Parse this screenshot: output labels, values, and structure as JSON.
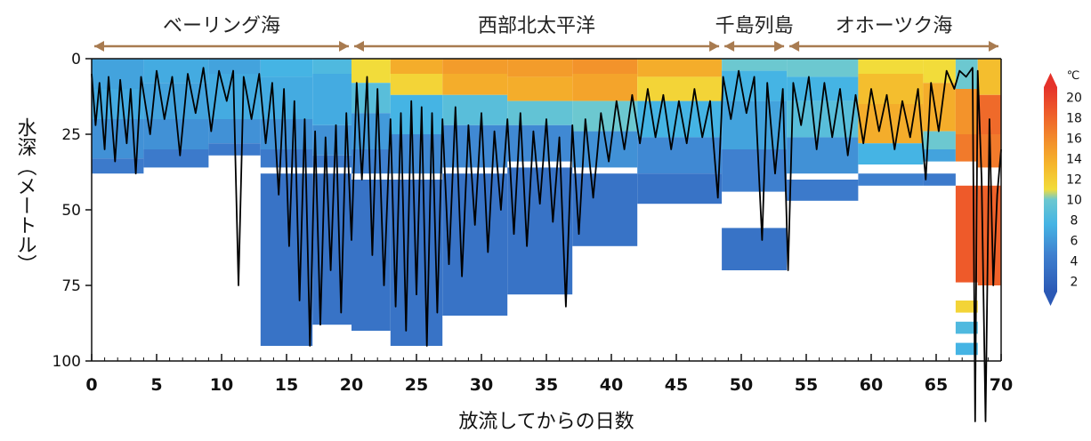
{
  "chart_data": {
    "type": "heatmap",
    "xlabel": "放流してからの日数",
    "ylabel": "水深（メートル）",
    "xlim": [
      0,
      70
    ],
    "ylim": [
      0,
      100
    ],
    "y_inverted": true,
    "x_ticks": [
      "0",
      "5",
      "10",
      "15",
      "20",
      "25",
      "30",
      "35",
      "40",
      "45",
      "50",
      "55",
      "60",
      "65",
      "70"
    ],
    "y_ticks": [
      "0",
      "25",
      "50",
      "75",
      "100"
    ],
    "grid": false,
    "regions": [
      {
        "label": "ベーリング海",
        "x_start": 0,
        "x_end": 20
      },
      {
        "label": "西部北太平洋",
        "x_start": 20,
        "x_end": 48.5
      },
      {
        "label": "千島列島",
        "x_start": 48.5,
        "x_end": 53.5
      },
      {
        "label": "オホーツク海",
        "x_start": 53.5,
        "x_end": 70
      }
    ],
    "colorbar": {
      "unit": "℃",
      "ticks": [
        "2",
        "4",
        "6",
        "8",
        "10",
        "12",
        "14",
        "16",
        "18",
        "20"
      ],
      "tick_values": [
        2,
        4,
        6,
        8,
        10,
        12,
        14,
        16,
        18,
        20
      ],
      "range": [
        1,
        21
      ]
    },
    "temperature_columns": [
      {
        "x0": 0.0,
        "x1": 4.0,
        "layers": [
          [
            0,
            10,
            6
          ],
          [
            10,
            20,
            6.5
          ],
          [
            20,
            33,
            5
          ],
          [
            33,
            38,
            3.5
          ]
        ]
      },
      {
        "x0": 4.0,
        "x1": 9.0,
        "layers": [
          [
            0,
            8,
            6.5
          ],
          [
            8,
            20,
            6
          ],
          [
            20,
            30,
            5
          ],
          [
            30,
            36,
            3.5
          ]
        ]
      },
      {
        "x0": 9.0,
        "x1": 13.0,
        "layers": [
          [
            0,
            5,
            6
          ],
          [
            5,
            20,
            6.5
          ],
          [
            20,
            28,
            5
          ],
          [
            28,
            32,
            3.5
          ]
        ]
      },
      {
        "x0": 13.0,
        "x1": 17.0,
        "layers": [
          [
            0,
            6,
            7
          ],
          [
            6,
            20,
            6.5
          ],
          [
            20,
            30,
            5
          ],
          [
            30,
            36,
            3.5
          ],
          [
            38,
            95,
            3
          ]
        ]
      },
      {
        "x0": 17.0,
        "x1": 20.0,
        "layers": [
          [
            0,
            5,
            7.5
          ],
          [
            5,
            22,
            6.5
          ],
          [
            22,
            32,
            5
          ],
          [
            32,
            36,
            3.5
          ],
          [
            38,
            88,
            3
          ]
        ]
      },
      {
        "x0": 20.0,
        "x1": 23.0,
        "layers": [
          [
            0,
            8,
            10
          ],
          [
            8,
            18,
            8
          ],
          [
            18,
            30,
            5.5
          ],
          [
            30,
            38,
            4
          ],
          [
            40,
            90,
            3
          ]
        ]
      },
      {
        "x0": 23.0,
        "x1": 27.0,
        "layers": [
          [
            0,
            5,
            13
          ],
          [
            5,
            12,
            10.5
          ],
          [
            12,
            25,
            7
          ],
          [
            25,
            38,
            4.5
          ],
          [
            40,
            95,
            3
          ]
        ]
      },
      {
        "x0": 27.0,
        "x1": 32.0,
        "layers": [
          [
            0,
            5,
            14
          ],
          [
            5,
            12,
            13
          ],
          [
            12,
            22,
            8
          ],
          [
            22,
            36,
            4.5
          ],
          [
            38,
            85,
            3
          ]
        ]
      },
      {
        "x0": 32.0,
        "x1": 37.0,
        "layers": [
          [
            0,
            6,
            14
          ],
          [
            6,
            14,
            13
          ],
          [
            14,
            22,
            8.5
          ],
          [
            22,
            34,
            4.5
          ],
          [
            36,
            78,
            3
          ]
        ]
      },
      {
        "x0": 37.0,
        "x1": 42.0,
        "layers": [
          [
            0,
            5,
            14.5
          ],
          [
            5,
            14,
            13.5
          ],
          [
            14,
            24,
            9
          ],
          [
            24,
            36,
            5
          ],
          [
            38,
            62,
            3
          ]
        ]
      },
      {
        "x0": 42.0,
        "x1": 48.5,
        "layers": [
          [
            0,
            6,
            13
          ],
          [
            6,
            14,
            10.5
          ],
          [
            14,
            26,
            7
          ],
          [
            26,
            38,
            4.5
          ],
          [
            38,
            48,
            3
          ]
        ]
      },
      {
        "x0": 48.5,
        "x1": 53.5,
        "layers": [
          [
            0,
            4,
            9
          ],
          [
            4,
            14,
            7
          ],
          [
            14,
            30,
            6
          ],
          [
            30,
            44,
            4
          ],
          [
            56,
            70,
            3
          ]
        ]
      },
      {
        "x0": 53.5,
        "x1": 59.0,
        "layers": [
          [
            0,
            6,
            9
          ],
          [
            6,
            14,
            7
          ],
          [
            14,
            26,
            8
          ],
          [
            26,
            38,
            5
          ],
          [
            40,
            47,
            3.5
          ]
        ]
      },
      {
        "x0": 59.0,
        "x1": 64.0,
        "layers": [
          [
            0,
            5,
            10
          ],
          [
            5,
            15,
            12
          ],
          [
            15,
            28,
            13
          ],
          [
            28,
            35,
            7
          ],
          [
            38,
            42,
            4
          ]
        ]
      },
      {
        "x0": 64.0,
        "x1": 66.5,
        "layers": [
          [
            0,
            8,
            10
          ],
          [
            8,
            24,
            13
          ],
          [
            24,
            30,
            9
          ],
          [
            30,
            34,
            6
          ],
          [
            38,
            42,
            3.5
          ]
        ]
      },
      {
        "x0": 66.5,
        "x1": 68.2,
        "layers": [
          [
            0,
            10,
            9
          ],
          [
            10,
            25,
            14.5
          ],
          [
            25,
            34,
            16
          ],
          [
            42,
            74,
            18
          ],
          [
            80,
            84,
            10.5
          ],
          [
            87,
            91,
            7.5
          ],
          [
            94,
            98,
            7
          ]
        ]
      },
      {
        "x0": 68.2,
        "x1": 70.0,
        "layers": [
          [
            0,
            12,
            12
          ],
          [
            12,
            25,
            17
          ],
          [
            25,
            36,
            16
          ],
          [
            42,
            75,
            17.5
          ]
        ]
      }
    ],
    "depth_trace": [
      [
        0,
        5
      ],
      [
        0.3,
        22
      ],
      [
        0.6,
        8
      ],
      [
        1.0,
        30
      ],
      [
        1.3,
        6
      ],
      [
        1.8,
        34
      ],
      [
        2.2,
        7
      ],
      [
        2.7,
        28
      ],
      [
        3.0,
        10
      ],
      [
        3.4,
        38
      ],
      [
        3.8,
        6
      ],
      [
        4.5,
        25
      ],
      [
        5.0,
        4
      ],
      [
        5.6,
        20
      ],
      [
        6.2,
        6
      ],
      [
        6.8,
        32
      ],
      [
        7.4,
        5
      ],
      [
        8.0,
        18
      ],
      [
        8.6,
        3
      ],
      [
        9.2,
        24
      ],
      [
        9.8,
        4
      ],
      [
        10.4,
        14
      ],
      [
        10.9,
        4
      ],
      [
        11.3,
        75
      ],
      [
        11.7,
        6
      ],
      [
        12.3,
        20
      ],
      [
        12.9,
        5
      ],
      [
        13.4,
        28
      ],
      [
        13.9,
        8
      ],
      [
        14.4,
        45
      ],
      [
        14.8,
        10
      ],
      [
        15.2,
        62
      ],
      [
        15.6,
        14
      ],
      [
        16.0,
        80
      ],
      [
        16.4,
        20
      ],
      [
        16.8,
        95
      ],
      [
        17.2,
        24
      ],
      [
        17.6,
        88
      ],
      [
        18.0,
        26
      ],
      [
        18.4,
        70
      ],
      [
        18.8,
        22
      ],
      [
        19.2,
        84
      ],
      [
        19.6,
        18
      ],
      [
        20.0,
        60
      ],
      [
        20.4,
        8
      ],
      [
        20.8,
        40
      ],
      [
        21.2,
        6
      ],
      [
        21.6,
        65
      ],
      [
        22.0,
        10
      ],
      [
        22.5,
        75
      ],
      [
        23.0,
        20
      ],
      [
        23.4,
        82
      ],
      [
        23.8,
        18
      ],
      [
        24.2,
        90
      ],
      [
        24.6,
        14
      ],
      [
        25.0,
        78
      ],
      [
        25.4,
        16
      ],
      [
        25.8,
        95
      ],
      [
        26.2,
        18
      ],
      [
        26.6,
        84
      ],
      [
        27.0,
        20
      ],
      [
        27.5,
        68
      ],
      [
        28.0,
        16
      ],
      [
        28.5,
        72
      ],
      [
        29.0,
        22
      ],
      [
        29.5,
        55
      ],
      [
        30.0,
        18
      ],
      [
        30.5,
        64
      ],
      [
        31.0,
        24
      ],
      [
        31.5,
        50
      ],
      [
        32.0,
        20
      ],
      [
        32.5,
        58
      ],
      [
        33.0,
        18
      ],
      [
        33.5,
        62
      ],
      [
        34.0,
        24
      ],
      [
        34.5,
        48
      ],
      [
        35.0,
        20
      ],
      [
        35.5,
        54
      ],
      [
        36.0,
        26
      ],
      [
        36.5,
        82
      ],
      [
        37.0,
        22
      ],
      [
        37.5,
        58
      ],
      [
        38.0,
        20
      ],
      [
        38.6,
        46
      ],
      [
        39.2,
        18
      ],
      [
        39.8,
        34
      ],
      [
        40.4,
        14
      ],
      [
        41.0,
        30
      ],
      [
        41.6,
        12
      ],
      [
        42.2,
        28
      ],
      [
        42.8,
        10
      ],
      [
        43.4,
        26
      ],
      [
        44.0,
        12
      ],
      [
        44.6,
        30
      ],
      [
        45.2,
        14
      ],
      [
        45.8,
        28
      ],
      [
        46.4,
        10
      ],
      [
        47.0,
        26
      ],
      [
        47.6,
        14
      ],
      [
        48.2,
        46
      ],
      [
        48.6,
        6
      ],
      [
        49.2,
        20
      ],
      [
        49.8,
        4
      ],
      [
        50.4,
        18
      ],
      [
        51.0,
        6
      ],
      [
        51.6,
        60
      ],
      [
        52.0,
        8
      ],
      [
        52.6,
        38
      ],
      [
        53.2,
        10
      ],
      [
        53.6,
        70
      ],
      [
        54.0,
        8
      ],
      [
        54.6,
        22
      ],
      [
        55.2,
        6
      ],
      [
        55.8,
        30
      ],
      [
        56.4,
        8
      ],
      [
        57.0,
        26
      ],
      [
        57.6,
        10
      ],
      [
        58.2,
        32
      ],
      [
        58.8,
        12
      ],
      [
        59.4,
        28
      ],
      [
        60.0,
        10
      ],
      [
        60.6,
        24
      ],
      [
        61.2,
        12
      ],
      [
        61.8,
        30
      ],
      [
        62.4,
        14
      ],
      [
        63.0,
        26
      ],
      [
        63.6,
        10
      ],
      [
        64.2,
        40
      ],
      [
        64.6,
        8
      ],
      [
        65.2,
        24
      ],
      [
        65.8,
        4
      ],
      [
        66.4,
        10
      ],
      [
        66.8,
        4
      ],
      [
        67.3,
        6
      ],
      [
        67.8,
        3
      ],
      [
        68.0,
        120
      ],
      [
        68.2,
        4
      ],
      [
        68.5,
        40
      ],
      [
        68.8,
        120
      ],
      [
        69.1,
        20
      ],
      [
        69.4,
        75
      ],
      [
        69.7,
        45
      ],
      [
        70.0,
        30
      ]
    ]
  }
}
